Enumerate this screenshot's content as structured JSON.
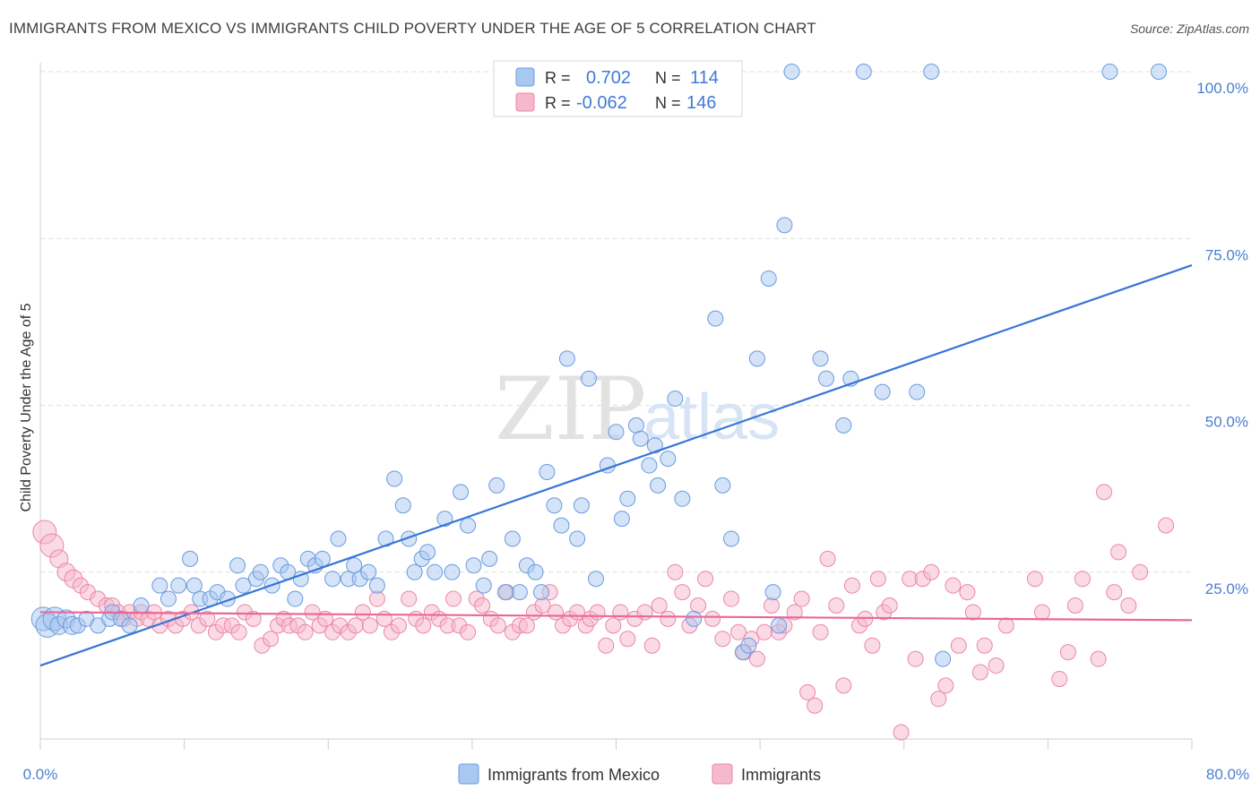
{
  "title": "IMMIGRANTS FROM MEXICO VS IMMIGRANTS CHILD POVERTY UNDER THE AGE OF 5 CORRELATION CHART",
  "source": "Source: ZipAtlas.com",
  "watermark": {
    "zip": "ZIP",
    "atlas": "atlas"
  },
  "legend": {
    "r_label": "R =",
    "n_label": "N =",
    "rows": [
      {
        "r": "0.702",
        "n": "114",
        "color": "#a9c8ef"
      },
      {
        "r": "-0.062",
        "n": "146",
        "color": "#f6b8cb"
      }
    ]
  },
  "chart_data": {
    "type": "scatter",
    "title": "IMMIGRANTS FROM MEXICO VS IMMIGRANTS CHILD POVERTY UNDER THE AGE OF 5 CORRELATION CHART",
    "ylabel": "Child Poverty Under the Age of 5",
    "xlim": [
      0,
      80
    ],
    "ylim": [
      0,
      100
    ],
    "x_tick_labels": [
      "0.0%",
      "80.0%"
    ],
    "y_tick_labels": [
      "25.0%",
      "50.0%",
      "75.0%",
      "100.0%"
    ],
    "y_ticks": [
      25,
      50,
      75,
      100
    ],
    "grid": true,
    "legend_position": "top-center",
    "series": [
      {
        "name": "Immigrants from Mexico",
        "color": "#6a9be0",
        "fill": "#a9c8ef",
        "trend": {
          "x0": 0,
          "y0": 11,
          "x1": 80,
          "y1": 71
        },
        "points": [
          [
            0.2,
            18
          ],
          [
            0.5,
            17
          ],
          [
            1.0,
            18
          ],
          [
            1.3,
            17
          ],
          [
            1.8,
            18
          ],
          [
            2.2,
            17
          ],
          [
            2.6,
            17
          ],
          [
            3.2,
            18
          ],
          [
            4.0,
            17
          ],
          [
            4.8,
            18
          ],
          [
            5.0,
            19
          ],
          [
            5.6,
            18
          ],
          [
            6.2,
            17
          ],
          [
            7.0,
            20
          ],
          [
            8.3,
            23
          ],
          [
            8.9,
            21
          ],
          [
            9.6,
            23
          ],
          [
            10.4,
            27
          ],
          [
            10.7,
            23
          ],
          [
            11.1,
            21
          ],
          [
            11.8,
            21
          ],
          [
            12.3,
            22
          ],
          [
            13.0,
            21
          ],
          [
            13.7,
            26
          ],
          [
            14.1,
            23
          ],
          [
            15.0,
            24
          ],
          [
            15.3,
            25
          ],
          [
            16.1,
            23
          ],
          [
            16.7,
            26
          ],
          [
            17.2,
            25
          ],
          [
            17.7,
            21
          ],
          [
            18.1,
            24
          ],
          [
            18.6,
            27
          ],
          [
            19.1,
            26
          ],
          [
            19.6,
            27
          ],
          [
            20.3,
            24
          ],
          [
            20.7,
            30
          ],
          [
            21.4,
            24
          ],
          [
            21.8,
            26
          ],
          [
            22.2,
            24
          ],
          [
            22.8,
            25
          ],
          [
            23.4,
            23
          ],
          [
            24.0,
            30
          ],
          [
            24.6,
            39
          ],
          [
            25.2,
            35
          ],
          [
            25.6,
            30
          ],
          [
            26.0,
            25
          ],
          [
            26.5,
            27
          ],
          [
            26.9,
            28
          ],
          [
            27.4,
            25
          ],
          [
            28.1,
            33
          ],
          [
            28.6,
            25
          ],
          [
            29.2,
            37
          ],
          [
            29.7,
            32
          ],
          [
            30.1,
            26
          ],
          [
            30.8,
            23
          ],
          [
            31.2,
            27
          ],
          [
            31.7,
            38
          ],
          [
            32.3,
            22
          ],
          [
            32.8,
            30
          ],
          [
            33.3,
            22
          ],
          [
            33.8,
            26
          ],
          [
            34.4,
            25
          ],
          [
            34.8,
            22
          ],
          [
            35.2,
            40
          ],
          [
            35.7,
            35
          ],
          [
            36.2,
            32
          ],
          [
            36.6,
            57
          ],
          [
            37.3,
            30
          ],
          [
            37.6,
            35
          ],
          [
            38.1,
            54
          ],
          [
            38.6,
            24
          ],
          [
            39.4,
            41
          ],
          [
            40.0,
            46
          ],
          [
            40.4,
            33
          ],
          [
            40.8,
            36
          ],
          [
            41.4,
            47
          ],
          [
            41.7,
            45
          ],
          [
            42.3,
            41
          ],
          [
            42.7,
            44
          ],
          [
            42.9,
            38
          ],
          [
            43.6,
            42
          ],
          [
            44.1,
            51
          ],
          [
            44.6,
            36
          ],
          [
            45.4,
            18
          ],
          [
            46.9,
            63
          ],
          [
            47.4,
            38
          ],
          [
            48.0,
            30
          ],
          [
            48.8,
            13
          ],
          [
            49.2,
            14
          ],
          [
            49.8,
            57
          ],
          [
            50.6,
            69
          ],
          [
            50.9,
            22
          ],
          [
            51.3,
            17
          ],
          [
            51.7,
            77
          ],
          [
            52.2,
            100
          ],
          [
            54.2,
            57
          ],
          [
            54.6,
            54
          ],
          [
            55.8,
            47
          ],
          [
            56.3,
            54
          ],
          [
            57.2,
            100
          ],
          [
            58.5,
            52
          ],
          [
            60.9,
            52
          ],
          [
            61.9,
            100
          ],
          [
            62.7,
            12
          ],
          [
            74.3,
            100
          ],
          [
            77.7,
            100
          ]
        ]
      },
      {
        "name": "Immigrants",
        "color": "#ec86a7",
        "fill": "#f6b8cb",
        "trend": {
          "x0": 0,
          "y0": 19,
          "x1": 80,
          "y1": 17.8
        },
        "points": [
          [
            0.3,
            31
          ],
          [
            0.8,
            29
          ],
          [
            1.3,
            27
          ],
          [
            1.8,
            25
          ],
          [
            2.3,
            24
          ],
          [
            2.8,
            23
          ],
          [
            3.3,
            22
          ],
          [
            4.0,
            21
          ],
          [
            4.6,
            20
          ],
          [
            5.0,
            20
          ],
          [
            5.4,
            19
          ],
          [
            5.8,
            18
          ],
          [
            6.2,
            19
          ],
          [
            6.7,
            18
          ],
          [
            7.0,
            19
          ],
          [
            7.5,
            18
          ],
          [
            7.9,
            19
          ],
          [
            8.3,
            17
          ],
          [
            8.9,
            18
          ],
          [
            9.4,
            17
          ],
          [
            9.9,
            18
          ],
          [
            10.5,
            19
          ],
          [
            11.0,
            17
          ],
          [
            11.6,
            18
          ],
          [
            12.2,
            16
          ],
          [
            12.7,
            17
          ],
          [
            13.3,
            17
          ],
          [
            13.8,
            16
          ],
          [
            14.2,
            19
          ],
          [
            14.8,
            18
          ],
          [
            15.4,
            14
          ],
          [
            16.0,
            15
          ],
          [
            16.5,
            17
          ],
          [
            16.9,
            18
          ],
          [
            17.3,
            17
          ],
          [
            17.9,
            17
          ],
          [
            18.4,
            16
          ],
          [
            18.9,
            19
          ],
          [
            19.4,
            17
          ],
          [
            19.8,
            18
          ],
          [
            20.3,
            16
          ],
          [
            20.8,
            17
          ],
          [
            21.4,
            16
          ],
          [
            21.9,
            17
          ],
          [
            22.4,
            19
          ],
          [
            22.9,
            17
          ],
          [
            23.4,
            21
          ],
          [
            23.9,
            18
          ],
          [
            24.4,
            16
          ],
          [
            24.9,
            17
          ],
          [
            25.6,
            21
          ],
          [
            26.1,
            18
          ],
          [
            26.6,
            17
          ],
          [
            27.2,
            19
          ],
          [
            27.7,
            18
          ],
          [
            28.3,
            17
          ],
          [
            28.7,
            21
          ],
          [
            29.1,
            17
          ],
          [
            29.7,
            16
          ],
          [
            30.3,
            21
          ],
          [
            30.7,
            20
          ],
          [
            31.3,
            18
          ],
          [
            31.8,
            17
          ],
          [
            32.4,
            22
          ],
          [
            32.8,
            16
          ],
          [
            33.3,
            17
          ],
          [
            33.8,
            17
          ],
          [
            34.3,
            19
          ],
          [
            34.9,
            20
          ],
          [
            35.4,
            22
          ],
          [
            35.8,
            19
          ],
          [
            36.3,
            17
          ],
          [
            36.8,
            18
          ],
          [
            37.3,
            19
          ],
          [
            37.9,
            17
          ],
          [
            38.2,
            18
          ],
          [
            38.7,
            19
          ],
          [
            39.3,
            14
          ],
          [
            39.8,
            17
          ],
          [
            40.3,
            19
          ],
          [
            40.8,
            15
          ],
          [
            41.3,
            18
          ],
          [
            42.0,
            19
          ],
          [
            42.5,
            14
          ],
          [
            43.0,
            20
          ],
          [
            43.6,
            18
          ],
          [
            44.1,
            25
          ],
          [
            44.6,
            22
          ],
          [
            45.1,
            17
          ],
          [
            45.7,
            20
          ],
          [
            46.2,
            24
          ],
          [
            46.7,
            18
          ],
          [
            47.4,
            15
          ],
          [
            48.0,
            21
          ],
          [
            48.5,
            16
          ],
          [
            48.9,
            13
          ],
          [
            49.4,
            15
          ],
          [
            49.8,
            12
          ],
          [
            50.3,
            16
          ],
          [
            50.8,
            20
          ],
          [
            51.3,
            16
          ],
          [
            51.7,
            17
          ],
          [
            52.4,
            19
          ],
          [
            52.9,
            21
          ],
          [
            53.3,
            7
          ],
          [
            53.8,
            5
          ],
          [
            54.2,
            16
          ],
          [
            54.7,
            27
          ],
          [
            55.3,
            20
          ],
          [
            55.8,
            8
          ],
          [
            56.4,
            23
          ],
          [
            56.9,
            17
          ],
          [
            57.3,
            18
          ],
          [
            57.8,
            14
          ],
          [
            58.2,
            24
          ],
          [
            58.6,
            19
          ],
          [
            59.0,
            20
          ],
          [
            59.8,
            1
          ],
          [
            60.4,
            24
          ],
          [
            60.8,
            12
          ],
          [
            61.3,
            24
          ],
          [
            61.9,
            25
          ],
          [
            62.4,
            6
          ],
          [
            62.9,
            8
          ],
          [
            63.4,
            23
          ],
          [
            63.8,
            14
          ],
          [
            64.4,
            22
          ],
          [
            64.8,
            19
          ],
          [
            65.3,
            10
          ],
          [
            65.6,
            14
          ],
          [
            66.4,
            11
          ],
          [
            67.1,
            17
          ],
          [
            69.1,
            24
          ],
          [
            69.6,
            19
          ],
          [
            70.8,
            9
          ],
          [
            71.4,
            13
          ],
          [
            71.9,
            20
          ],
          [
            72.4,
            24
          ],
          [
            73.5,
            12
          ],
          [
            73.9,
            37
          ],
          [
            74.6,
            22
          ],
          [
            74.9,
            28
          ],
          [
            75.6,
            20
          ],
          [
            76.4,
            25
          ],
          [
            78.2,
            32
          ]
        ]
      }
    ]
  },
  "bottom_legend": [
    "Immigrants from Mexico",
    "Immigrants"
  ]
}
